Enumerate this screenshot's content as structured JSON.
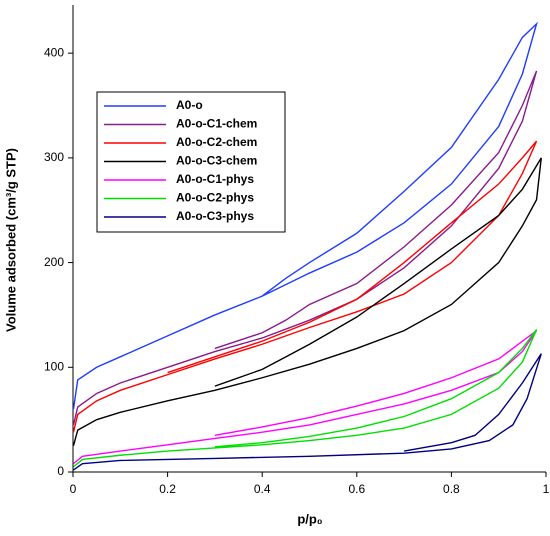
{
  "chart_data": {
    "type": "line",
    "xlabel": "p/p₀",
    "ylabel": "Volume adsorbed (cm³/g STP)",
    "xlim": [
      0,
      1
    ],
    "xticks": [
      0,
      0.2,
      0.4,
      0.6,
      0.8,
      1
    ],
    "ylim": [
      0,
      446
    ],
    "yticks": [
      0,
      100,
      200,
      300,
      400
    ],
    "legend": "upper left",
    "series": [
      {
        "name": "A0-o",
        "color": "#1f3dff",
        "x": [
          0.001,
          0.01,
          0.05,
          0.1,
          0.2,
          0.3,
          0.4,
          0.5,
          0.6,
          0.7,
          0.8,
          0.9,
          0.95,
          0.98,
          0.95,
          0.9,
          0.8,
          0.7,
          0.6,
          0.5,
          0.45,
          0.4
        ],
        "values": [
          60,
          88,
          100,
          110,
          130,
          150,
          168,
          190,
          210,
          238,
          275,
          330,
          380,
          428,
          415,
          375,
          310,
          268,
          228,
          200,
          185,
          168
        ]
      },
      {
        "name": "A0-o-C1-chem",
        "color": "#8b1a8b",
        "x": [
          0.001,
          0.01,
          0.05,
          0.1,
          0.2,
          0.3,
          0.4,
          0.5,
          0.6,
          0.7,
          0.8,
          0.9,
          0.95,
          0.98,
          0.95,
          0.9,
          0.8,
          0.7,
          0.6,
          0.5,
          0.45,
          0.4,
          0.3
        ],
        "values": [
          45,
          62,
          75,
          85,
          100,
          115,
          128,
          145,
          165,
          195,
          235,
          290,
          335,
          383,
          350,
          305,
          255,
          215,
          180,
          160,
          145,
          133,
          118
        ]
      },
      {
        "name": "A0-o-C2-chem",
        "color": "#ff0000",
        "x": [
          0.001,
          0.01,
          0.05,
          0.1,
          0.2,
          0.3,
          0.4,
          0.5,
          0.6,
          0.7,
          0.8,
          0.9,
          0.95,
          0.98,
          0.95,
          0.9,
          0.8,
          0.7,
          0.6,
          0.5,
          0.4,
          0.3,
          0.2
        ],
        "values": [
          38,
          55,
          68,
          78,
          93,
          108,
          122,
          138,
          153,
          170,
          200,
          245,
          285,
          316,
          300,
          275,
          238,
          200,
          165,
          143,
          125,
          110,
          95
        ]
      },
      {
        "name": "A0-o-C3-chem",
        "color": "#000000",
        "x": [
          0.001,
          0.01,
          0.05,
          0.1,
          0.2,
          0.3,
          0.4,
          0.5,
          0.6,
          0.7,
          0.8,
          0.9,
          0.95,
          0.98,
          0.99,
          0.95,
          0.9,
          0.8,
          0.7,
          0.6,
          0.5,
          0.45,
          0.4,
          0.3
        ],
        "values": [
          25,
          40,
          50,
          57,
          68,
          78,
          90,
          103,
          118,
          135,
          160,
          200,
          235,
          260,
          300,
          270,
          245,
          213,
          180,
          148,
          122,
          110,
          98,
          82
        ]
      },
      {
        "name": "A0-o-C1-phys",
        "color": "#ff00ff",
        "x": [
          0.001,
          0.02,
          0.1,
          0.2,
          0.3,
          0.4,
          0.5,
          0.6,
          0.7,
          0.8,
          0.9,
          0.95,
          0.98,
          0.9,
          0.8,
          0.7,
          0.6,
          0.5,
          0.4,
          0.3
        ],
        "values": [
          8,
          15,
          20,
          26,
          32,
          38,
          45,
          55,
          65,
          78,
          95,
          115,
          135,
          108,
          90,
          75,
          63,
          52,
          43,
          35
        ]
      },
      {
        "name": "A0-o-C2-phys",
        "color": "#00e000",
        "x": [
          0.001,
          0.02,
          0.1,
          0.2,
          0.3,
          0.4,
          0.5,
          0.6,
          0.7,
          0.8,
          0.9,
          0.95,
          0.98,
          0.95,
          0.9,
          0.8,
          0.7,
          0.6,
          0.5,
          0.4,
          0.3
        ],
        "values": [
          5,
          12,
          16,
          20,
          23,
          26,
          30,
          35,
          42,
          55,
          80,
          105,
          136,
          118,
          95,
          70,
          53,
          42,
          34,
          28,
          24
        ]
      },
      {
        "name": "A0-o-C3-phys",
        "color": "#000080",
        "x": [
          0.001,
          0.02,
          0.1,
          0.3,
          0.5,
          0.7,
          0.8,
          0.88,
          0.93,
          0.96,
          0.99,
          0.95,
          0.9,
          0.85,
          0.8,
          0.7
        ],
        "values": [
          2,
          8,
          11,
          13,
          15,
          18,
          22,
          30,
          45,
          70,
          113,
          85,
          55,
          35,
          28,
          20
        ]
      }
    ]
  }
}
